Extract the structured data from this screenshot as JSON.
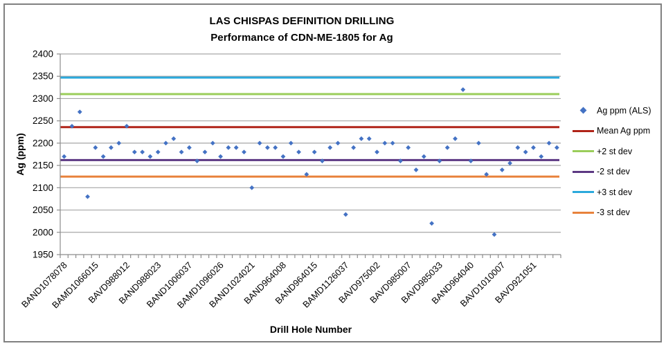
{
  "chart_data": {
    "type": "scatter",
    "title": "LAS CHISPAS DEFINITION DRILLING",
    "subtitle": "Performance of CDN-ME-1805 for Ag",
    "xlabel": "Drill Hole Number",
    "ylabel": "Ag (ppm)",
    "ylim": [
      1950,
      2400
    ],
    "yticks": [
      1950,
      2000,
      2050,
      2100,
      2150,
      2200,
      2250,
      2300,
      2350,
      2400
    ],
    "grid": "horizontal",
    "legend_position": "right",
    "x_label_interval": 4,
    "x_tick_labels": [
      "BAND1078078",
      "BAMD1066015",
      "BAVD988012",
      "BAND988023",
      "BAND1006037",
      "BAMD1096026",
      "BAND1024021",
      "BAND964008",
      "BAND964015",
      "BAMD1126037",
      "BAVD975002",
      "BAVD985007",
      "BAVD985033",
      "BAND964040",
      "BAVD1010007",
      "BAVD921051"
    ],
    "series": [
      {
        "name": "Ag ppm (ALS)",
        "marker": "diamond",
        "color": "#4472C4",
        "values": [
          2170,
          2238,
          2270,
          2080,
          2190,
          2170,
          2190,
          2200,
          2238,
          2180,
          2180,
          2170,
          2180,
          2200,
          2210,
          2180,
          2190,
          2160,
          2180,
          2200,
          2170,
          2190,
          2190,
          2180,
          2100,
          2200,
          2190,
          2190,
          2170,
          2200,
          2180,
          2130,
          2180,
          2160,
          2190,
          2200,
          2040,
          2190,
          2210,
          2210,
          2180,
          2200,
          2200,
          2160,
          2190,
          2140,
          2170,
          2020,
          2160,
          2190,
          2210,
          2320,
          2160,
          2200,
          2130,
          1995,
          2140,
          2155,
          2190,
          2180,
          2190,
          2170,
          2200,
          2190
        ]
      }
    ],
    "ref_lines": [
      {
        "name": "Mean Ag ppm",
        "value": 2236,
        "color": "#B02318"
      },
      {
        "name": "+2 st dev",
        "value": 2310,
        "color": "#9ACD5A"
      },
      {
        "name": "-2 st dev",
        "value": 2162,
        "color": "#5C3883"
      },
      {
        "name": "+3 st dev",
        "value": 2347,
        "color": "#2BA9DC"
      },
      {
        "name": "-3 st dev",
        "value": 2125,
        "color": "#E8823C"
      }
    ],
    "legend": [
      {
        "label": "Ag ppm (ALS)",
        "type": "marker",
        "color": "#4472C4"
      },
      {
        "label": "Mean Ag ppm",
        "type": "line",
        "color": "#B02318"
      },
      {
        "label": "+2 st dev",
        "type": "line",
        "color": "#9ACD5A"
      },
      {
        "label": "-2 st dev",
        "type": "line",
        "color": "#5C3883"
      },
      {
        "label": "+3 st dev",
        "type": "line",
        "color": "#2BA9DC"
      },
      {
        "label": "-3 st dev",
        "type": "line",
        "color": "#E8823C"
      }
    ],
    "colors": {
      "gridline": "#A6A6A6",
      "axis": "#8C8C8C",
      "text": "#000000",
      "border": "#808080",
      "background": "#FFFFFF"
    }
  }
}
